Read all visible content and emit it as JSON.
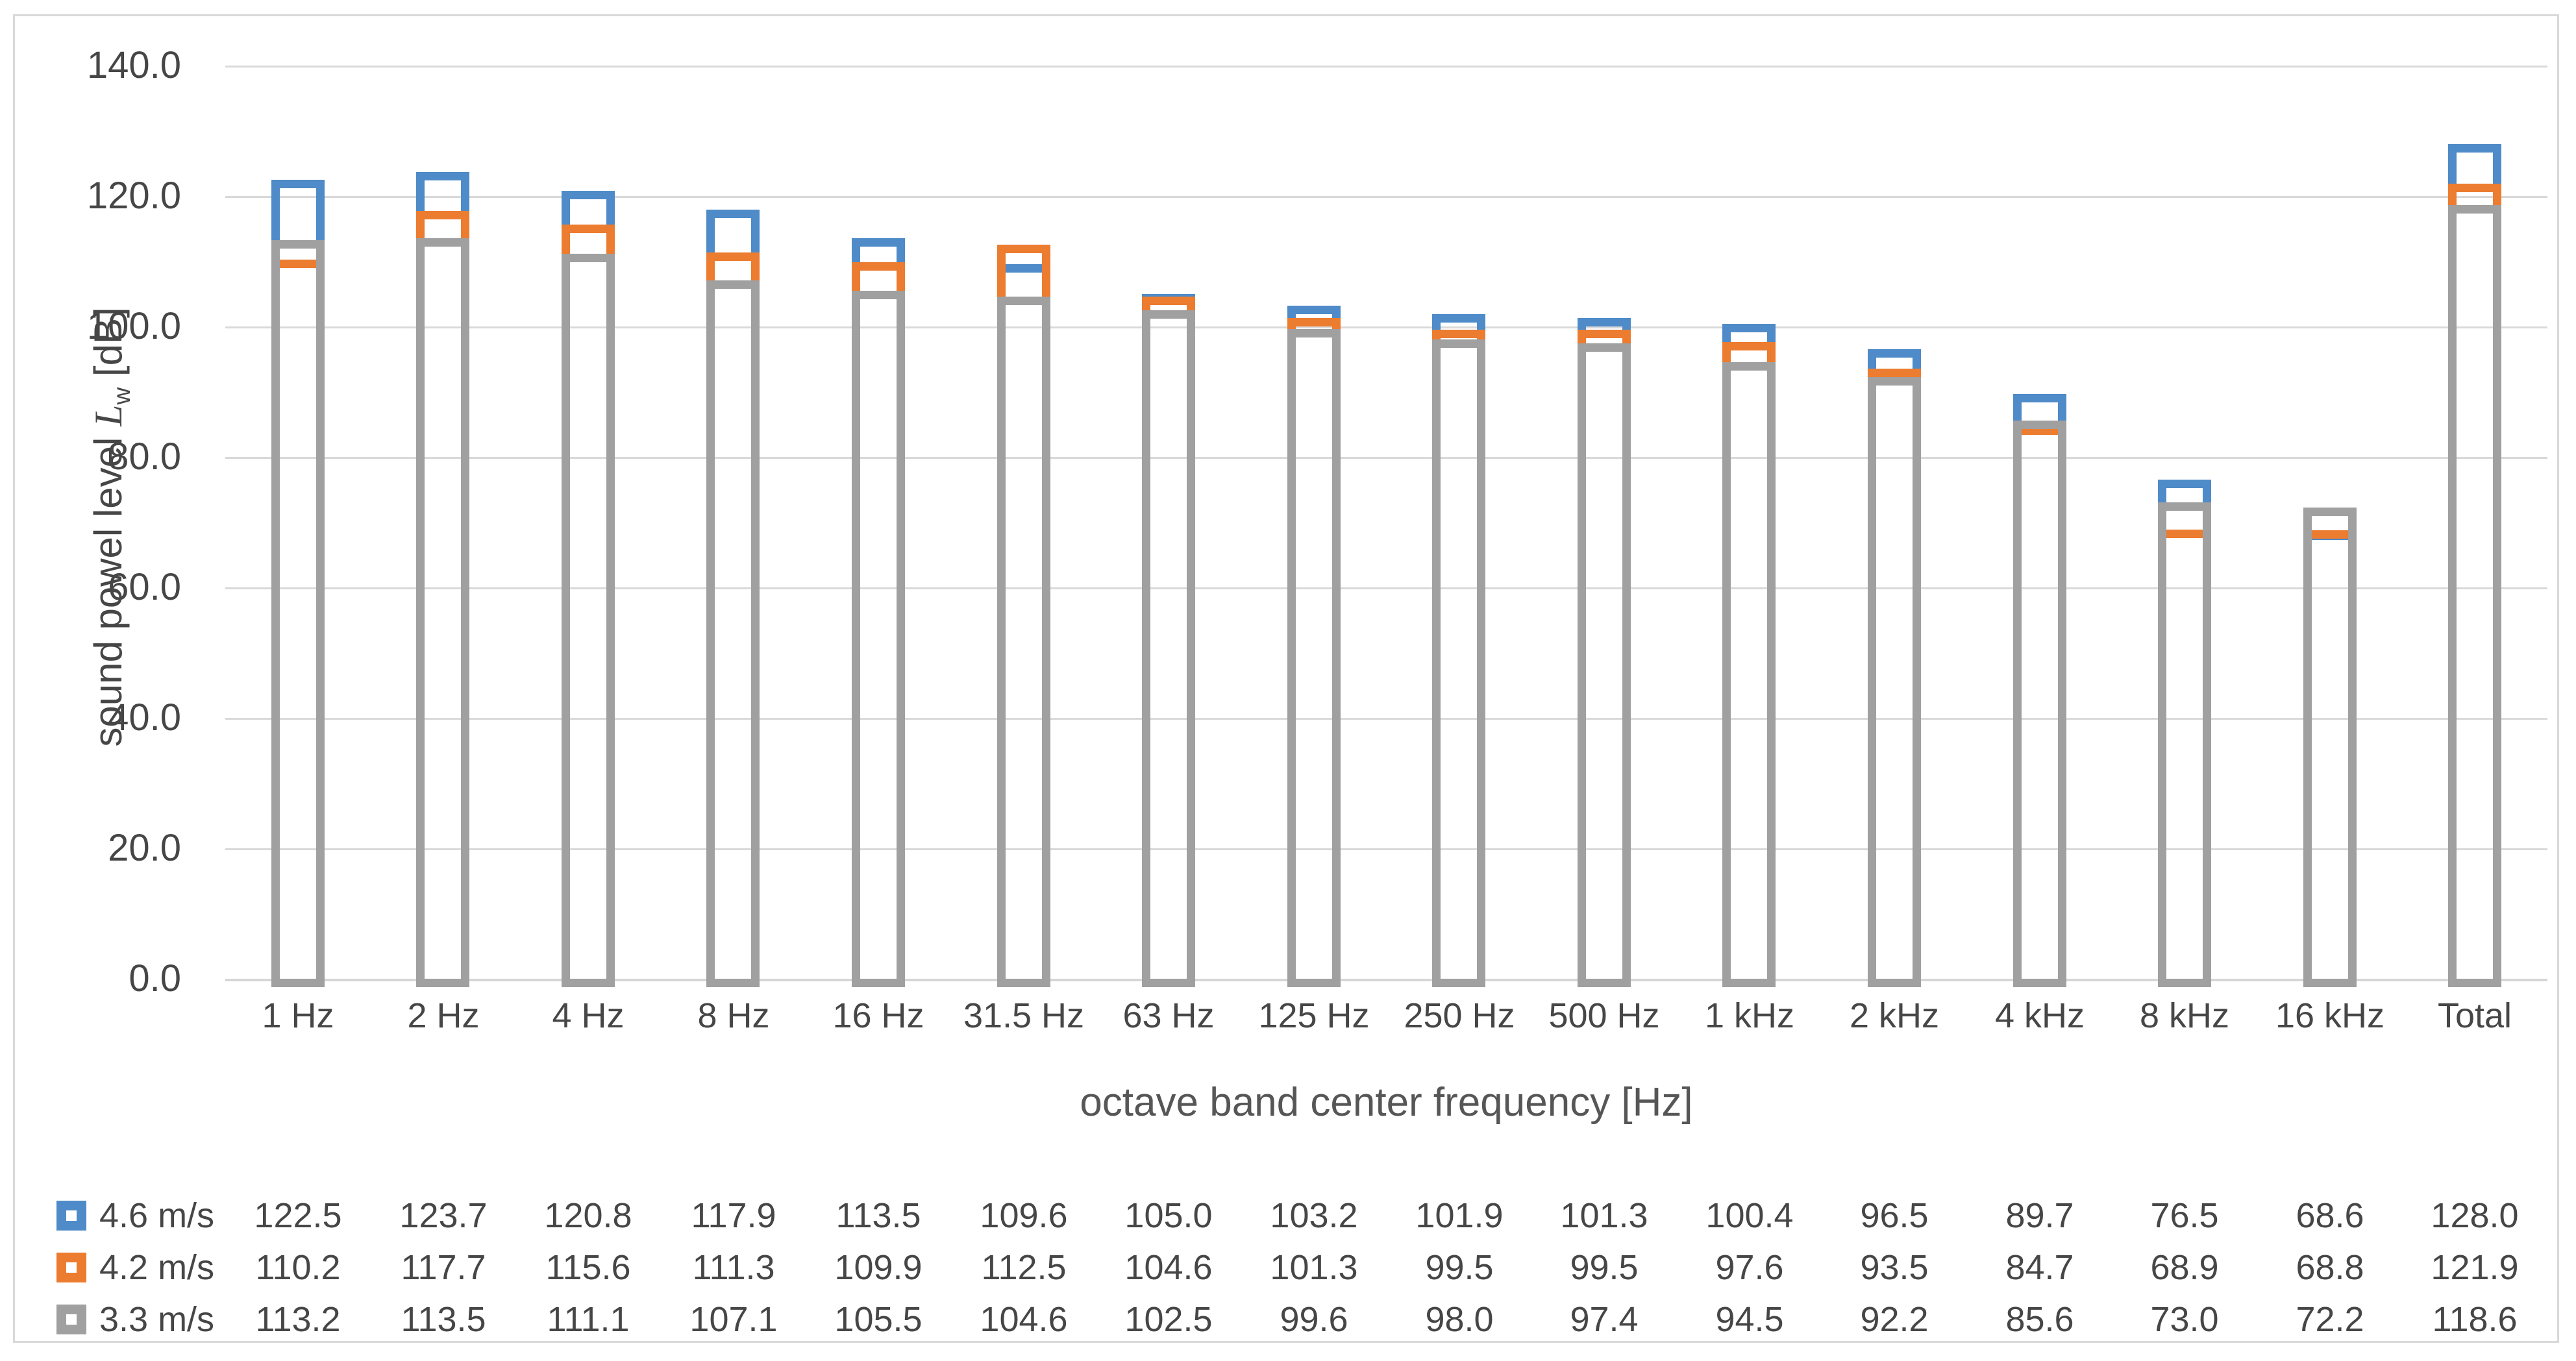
{
  "chart_data": {
    "type": "bar",
    "bar_style": "outlined-overlapping-hollow",
    "title": "",
    "xlabel": "octave band center frequency [Hz]",
    "ylabel": {
      "prefix": "sound powel level ",
      "symbol": "L",
      "symbol_sub": "w",
      "suffix": " [dB]"
    },
    "ylim": [
      0,
      140
    ],
    "ytick_step": 20,
    "ytick_labels_top_to_bottom": [
      "140.0",
      "120.0",
      "100.0",
      "80.0",
      "60.0",
      "40.0",
      "20.0",
      "0.0"
    ],
    "grid": true,
    "legend_position": "data-table-left",
    "categories": [
      "1 Hz",
      "2 Hz",
      "4 Hz",
      "8 Hz",
      "16 Hz",
      "31.5 Hz",
      "63 Hz",
      "125 Hz",
      "250 Hz",
      "500 Hz",
      "1 kHz",
      "2 kHz",
      "4 kHz",
      "8 kHz",
      "16 kHz",
      "Total"
    ],
    "series": [
      {
        "name": "4.6 m/s",
        "color": "#4E8BC8",
        "values": [
          "122.5",
          "123.7",
          "120.8",
          "117.9",
          "113.5",
          "109.6",
          "105.0",
          "103.2",
          "101.9",
          "101.3",
          "100.4",
          "96.5",
          "89.7",
          "76.5",
          "68.6",
          "128.0"
        ]
      },
      {
        "name": "4.2 m/s",
        "color": "#EC7C30",
        "values": [
          "110.2",
          "117.7",
          "115.6",
          "111.3",
          "109.9",
          "112.5",
          "104.6",
          "101.3",
          "99.5",
          "99.5",
          "97.6",
          "93.5",
          "84.7",
          "68.9",
          "68.8",
          "121.9"
        ]
      },
      {
        "name": "3.3 m/s",
        "color": "#A0A0A0",
        "values": [
          "113.2",
          "113.5",
          "111.1",
          "107.1",
          "105.5",
          "104.6",
          "102.5",
          "99.6",
          "98.0",
          "97.4",
          "94.5",
          "92.2",
          "85.6",
          "73.0",
          "72.2",
          "118.6"
        ]
      }
    ],
    "colors": {
      "grid": "#D9D9D9",
      "frame_border": "#D9D9D9",
      "text": "#464646",
      "background": "#FFFFFF"
    }
  }
}
